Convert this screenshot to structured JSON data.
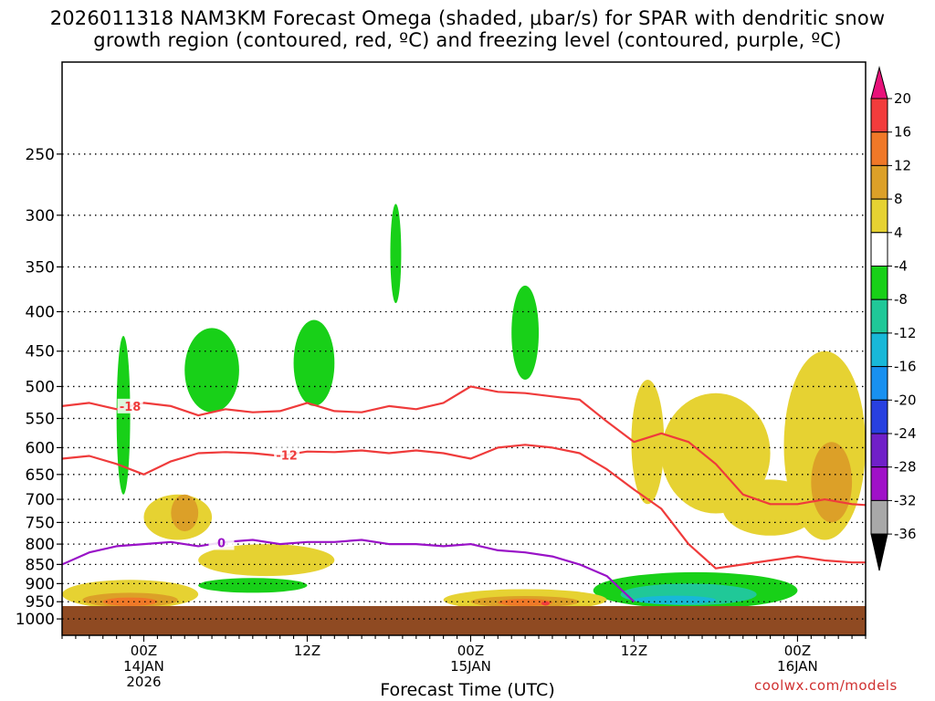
{
  "header": {
    "title_line1": "2026011318 NAM3KM Forecast Omega (shaded, μbar/s) for SPAR with dendritic snow",
    "title_line2": "growth region (contoured, red, ºC) and freezing level (contoured, purple, ºC)"
  },
  "footer": {
    "xlabel": "Forecast Time (UTC)",
    "credit": "coolwx.com/models"
  },
  "chart_data": {
    "type": "heatmap",
    "title": "2026011318 NAM3KM Forecast Omega (shaded, μbar/s) for SPAR with dendritic snow growth region (contoured, red, ºC) and freezing level (contoured, purple, ºC)",
    "xlabel": "Forecast Time (UTC)",
    "ylabel": "Pressure (hPa)",
    "x_range_hours": [
      -6,
      53
    ],
    "y_axis": {
      "scale": "log-pressure",
      "range": [
        1050,
        190
      ],
      "ticks": [
        250,
        300,
        350,
        400,
        450,
        500,
        550,
        600,
        650,
        700,
        750,
        800,
        850,
        900,
        950,
        1000
      ],
      "tick_labels": [
        "250",
        "300",
        "350",
        "400",
        "450",
        "500",
        "550",
        "600",
        "650",
        "700",
        "750",
        "800",
        "850",
        "900",
        "950",
        "1000"
      ]
    },
    "x_ticks": [
      {
        "hour": 0,
        "lines": [
          "00Z",
          "14JAN",
          "2026"
        ]
      },
      {
        "hour": 12,
        "lines": [
          "12Z"
        ]
      },
      {
        "hour": 24,
        "lines": [
          "00Z",
          "15JAN"
        ]
      },
      {
        "hour": 36,
        "lines": [
          "12Z"
        ]
      },
      {
        "hour": 48,
        "lines": [
          "00Z",
          "16JAN"
        ]
      }
    ],
    "grid": true,
    "colorbar": {
      "levels": [
        20,
        16,
        12,
        8,
        4,
        -4,
        -8,
        -12,
        -16,
        -20,
        -24,
        -28,
        -32,
        -36
      ],
      "labels": [
        "20",
        "16",
        "12",
        "8",
        "4",
        "-4",
        "-8",
        "-12",
        "-16",
        "-20",
        "-24",
        "-28",
        "-32",
        "-36"
      ],
      "colors": [
        "#e8127a",
        "#f23c3c",
        "#f07828",
        "#dca028",
        "#e6d232",
        "#ffffff",
        "#18d018",
        "#20c898",
        "#18b8d8",
        "#1890f0",
        "#2840e0",
        "#7020c8",
        "#a010c8",
        "#a8a8a8",
        "#000000"
      ]
    },
    "shading": [
      {
        "level": -4,
        "center": [
          -1.5,
          400
        ],
        "half": [
          1.5,
          170
        ]
      },
      {
        "level": -4,
        "center": [
          4,
          430
        ],
        "half": [
          3.5,
          120
        ]
      },
      {
        "level": -4,
        "center": [
          12.5,
          380
        ],
        "half": [
          3.5,
          160
        ]
      },
      {
        "level": -4,
        "center": [
          9.5,
          560
        ],
        "half": [
          3,
          120
        ]
      },
      {
        "level": -4,
        "center": [
          18.5,
          330
        ],
        "half": [
          1.5,
          120
        ]
      },
      {
        "level": -4,
        "center": [
          21.5,
          420
        ],
        "half": [
          1,
          150
        ]
      },
      {
        "level": -4,
        "center": [
          27.5,
          470
        ],
        "half": [
          3,
          190
        ]
      },
      {
        "level": -4,
        "center": [
          32.5,
          420
        ],
        "half": [
          2.5,
          160
        ]
      },
      {
        "level": -4,
        "center": [
          34,
          330
        ],
        "half": [
          0.7,
          60
        ]
      },
      {
        "level": -4,
        "center": [
          54,
          260
        ],
        "half": [
          0.2,
          45
        ]
      },
      {
        "level": -4,
        "center": [
          9,
          890
        ],
        "half": [
          7,
          40
        ]
      },
      {
        "level": -4,
        "center": [
          41,
          880
        ],
        "half": [
          7,
          60
        ]
      },
      {
        "level": -8,
        "center": [
          -1.5,
          560
        ],
        "half": [
          0.5,
          130
        ]
      },
      {
        "level": -8,
        "center": [
          5,
          480
        ],
        "half": [
          2,
          60
        ]
      },
      {
        "level": -8,
        "center": [
          12.5,
          470
        ],
        "half": [
          1.5,
          60
        ]
      },
      {
        "level": -8,
        "center": [
          18.5,
          340
        ],
        "half": [
          0.4,
          50
        ]
      },
      {
        "level": -8,
        "center": [
          28,
          430
        ],
        "half": [
          1,
          60
        ]
      },
      {
        "level": -8,
        "center": [
          8,
          905
        ],
        "half": [
          4,
          20
        ]
      },
      {
        "level": -8,
        "center": [
          40.5,
          920
        ],
        "half": [
          7.5,
          50
        ]
      },
      {
        "level": -12,
        "center": [
          40,
          930
        ],
        "half": [
          5,
          30
        ]
      },
      {
        "level": -16,
        "center": [
          39,
          945
        ],
        "half": [
          3,
          12
        ]
      },
      {
        "level": 4,
        "center": [
          42,
          620
        ],
        "half": [
          4,
          110
        ]
      },
      {
        "level": 4,
        "center": [
          50,
          620
        ],
        "half": [
          3,
          170
        ]
      },
      {
        "level": 4,
        "center": [
          46,
          720
        ],
        "half": [
          3.5,
          60
        ]
      },
      {
        "level": 4,
        "center": [
          2.5,
          740
        ],
        "half": [
          2.5,
          50
        ]
      },
      {
        "level": 4,
        "center": [
          9,
          840
        ],
        "half": [
          5,
          40
        ]
      },
      {
        "level": 4,
        "center": [
          -1,
          930
        ],
        "half": [
          5,
          40
        ]
      },
      {
        "level": 4,
        "center": [
          28,
          945
        ],
        "half": [
          6,
          30
        ]
      },
      {
        "level": 4,
        "center": [
          37,
          600
        ],
        "half": [
          1.2,
          110
        ]
      },
      {
        "level": 8,
        "center": [
          50.5,
          670
        ],
        "half": [
          1.5,
          80
        ]
      },
      {
        "level": 8,
        "center": [
          3,
          730
        ],
        "half": [
          1,
          40
        ]
      },
      {
        "level": 8,
        "center": [
          -1,
          945
        ],
        "half": [
          3.5,
          20
        ]
      },
      {
        "level": 8,
        "center": [
          28,
          950
        ],
        "half": [
          4,
          16
        ]
      },
      {
        "level": 12,
        "center": [
          -1,
          950
        ],
        "half": [
          2,
          12
        ]
      },
      {
        "level": 12,
        "center": [
          28,
          952
        ],
        "half": [
          2,
          10
        ]
      },
      {
        "level": 16,
        "center": [
          29.5,
          955
        ],
        "half": [
          0.3,
          6
        ]
      }
    ],
    "contours": [
      {
        "name": "-18",
        "color": "#ef3b3b",
        "label_hour": -1,
        "label": "-18",
        "x": [
          -6,
          -4,
          -2,
          0,
          2,
          4,
          6,
          8,
          10,
          12,
          14,
          16,
          18,
          20,
          22,
          24,
          26,
          28,
          30,
          32,
          34,
          36,
          38,
          40,
          42,
          44,
          46,
          48,
          50,
          52,
          53
        ],
        "y": [
          530,
          525,
          535,
          525,
          530,
          545,
          535,
          540,
          538,
          525,
          538,
          540,
          530,
          535,
          525,
          500,
          508,
          510,
          515,
          520,
          555,
          590,
          575,
          590,
          630,
          690,
          710,
          710,
          700,
          710,
          712
        ]
      },
      {
        "name": "-12",
        "color": "#ef3b3b",
        "label_hour": 10.5,
        "label": "-12",
        "x": [
          -6,
          -4,
          -2,
          0,
          2,
          4,
          6,
          8,
          10,
          12,
          14,
          16,
          18,
          20,
          22,
          24,
          26,
          28,
          30,
          32,
          34,
          36,
          38,
          40,
          42,
          44,
          46,
          48,
          50,
          52,
          53
        ],
        "y": [
          620,
          615,
          630,
          650,
          625,
          610,
          608,
          610,
          615,
          607,
          608,
          605,
          610,
          605,
          610,
          620,
          600,
          595,
          600,
          610,
          640,
          680,
          720,
          800,
          860,
          850,
          840,
          830,
          840,
          845,
          845
        ]
      },
      {
        "name": "0",
        "color": "#9912c7",
        "label_hour": 5.7,
        "label": "0",
        "x": [
          -6,
          -4,
          -2,
          0,
          2,
          4,
          6,
          8,
          10,
          12,
          14,
          16,
          18,
          20,
          22,
          24,
          26,
          28,
          30,
          32,
          34,
          36
        ],
        "y": [
          850,
          820,
          805,
          800,
          795,
          805,
          795,
          790,
          800,
          795,
          795,
          790,
          800,
          800,
          805,
          800,
          815,
          820,
          830,
          850,
          880,
          950
        ]
      }
    ]
  }
}
